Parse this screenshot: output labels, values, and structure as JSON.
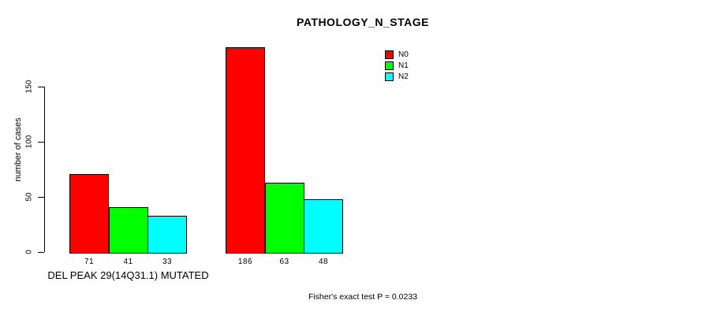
{
  "chart_data": {
    "type": "bar",
    "title": "PATHOLOGY_N_STAGE",
    "ylabel": "number of cases",
    "yticks": [
      0,
      50,
      100,
      150
    ],
    "ylim": [
      0,
      190
    ],
    "grid": false,
    "series": [
      {
        "name": "N0",
        "color": "#ff0000"
      },
      {
        "name": "N1",
        "color": "#00ff00"
      },
      {
        "name": "N2",
        "color": "#00ffff"
      }
    ],
    "groups": [
      {
        "label": "DEL PEAK 29(14Q31.1) MUTATED",
        "values": [
          71,
          41,
          33
        ]
      },
      {
        "label": "",
        "values": [
          186,
          63,
          48
        ]
      }
    ],
    "legend": {
      "position": "top-right",
      "entries": [
        "N0",
        "N1",
        "N2"
      ]
    },
    "footnote": "Fisher's exact test P = 0.0233"
  }
}
